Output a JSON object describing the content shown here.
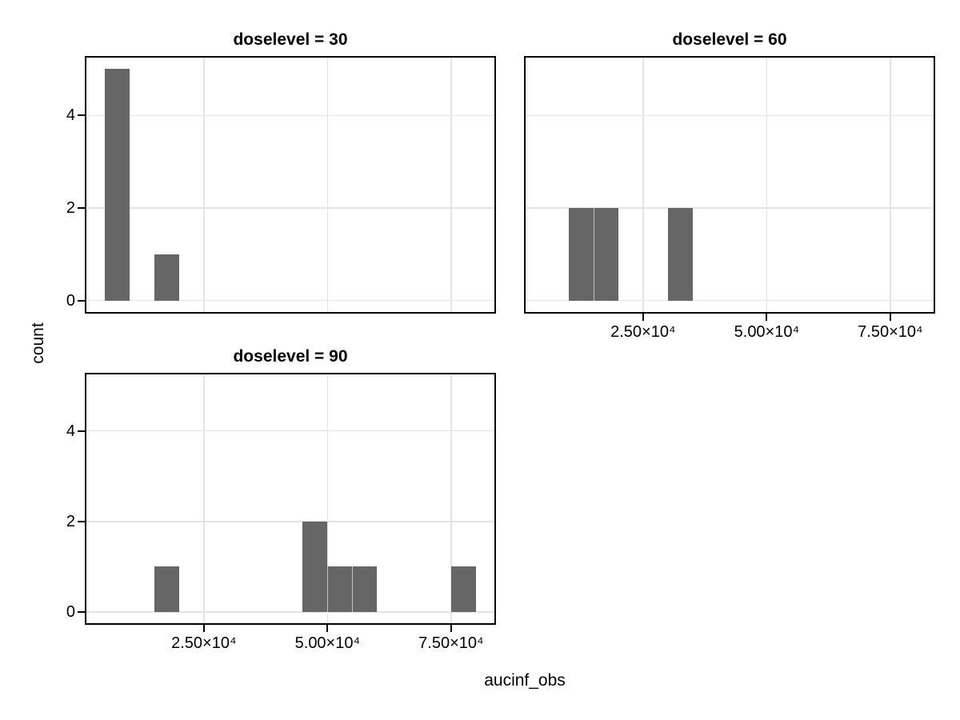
{
  "figure": {
    "ylabel": "count",
    "xlabel": "aucinf_obs",
    "colors": {
      "background": "#ffffff",
      "bar": "#666666",
      "bar_separator": "rgba(255,255,255,0.6)",
      "grid": "#e4e4e4",
      "panel_border": "#000000",
      "text": "#000000"
    }
  },
  "chart_data": {
    "type": "bar",
    "subtype": "faceted_histogram",
    "facet_variable": "doselevel",
    "xlabel": "aucinf_obs",
    "ylabel": "count",
    "x_domain": [
      1250,
      83750
    ],
    "y_domain": [
      -0.25,
      5.25
    ],
    "bin_width": 5000,
    "grid": true,
    "x_ticks": [
      {
        "value": 25000,
        "label": "2.50×10⁴"
      },
      {
        "value": 50000,
        "label": "5.00×10⁴"
      },
      {
        "value": 75000,
        "label": "7.50×10⁴"
      }
    ],
    "y_ticks": [
      {
        "value": 0,
        "label": "0"
      },
      {
        "value": 2,
        "label": "2"
      },
      {
        "value": 4,
        "label": "4"
      }
    ],
    "panels": [
      {
        "title": "doselevel = 30",
        "doselevel": 30,
        "grid_position": {
          "row": 0,
          "col": 0
        },
        "show_x_tick_labels": false,
        "show_y_tick_labels": true,
        "bins": [
          {
            "start": 5000,
            "end": 10000,
            "count": 5
          },
          {
            "start": 15000,
            "end": 20000,
            "count": 1
          }
        ]
      },
      {
        "title": "doselevel = 60",
        "doselevel": 60,
        "grid_position": {
          "row": 0,
          "col": 1
        },
        "show_x_tick_labels": true,
        "show_y_tick_labels": false,
        "bins": [
          {
            "start": 10000,
            "end": 15000,
            "count": 2
          },
          {
            "start": 15000,
            "end": 20000,
            "count": 2
          },
          {
            "start": 30000,
            "end": 35000,
            "count": 2
          }
        ]
      },
      {
        "title": "doselevel = 90",
        "doselevel": 90,
        "grid_position": {
          "row": 1,
          "col": 0
        },
        "show_x_tick_labels": true,
        "show_y_tick_labels": true,
        "bins": [
          {
            "start": 15000,
            "end": 20000,
            "count": 1
          },
          {
            "start": 45000,
            "end": 50000,
            "count": 2
          },
          {
            "start": 50000,
            "end": 55000,
            "count": 1
          },
          {
            "start": 55000,
            "end": 60000,
            "count": 1
          },
          {
            "start": 75000,
            "end": 80000,
            "count": 1
          }
        ]
      }
    ]
  }
}
